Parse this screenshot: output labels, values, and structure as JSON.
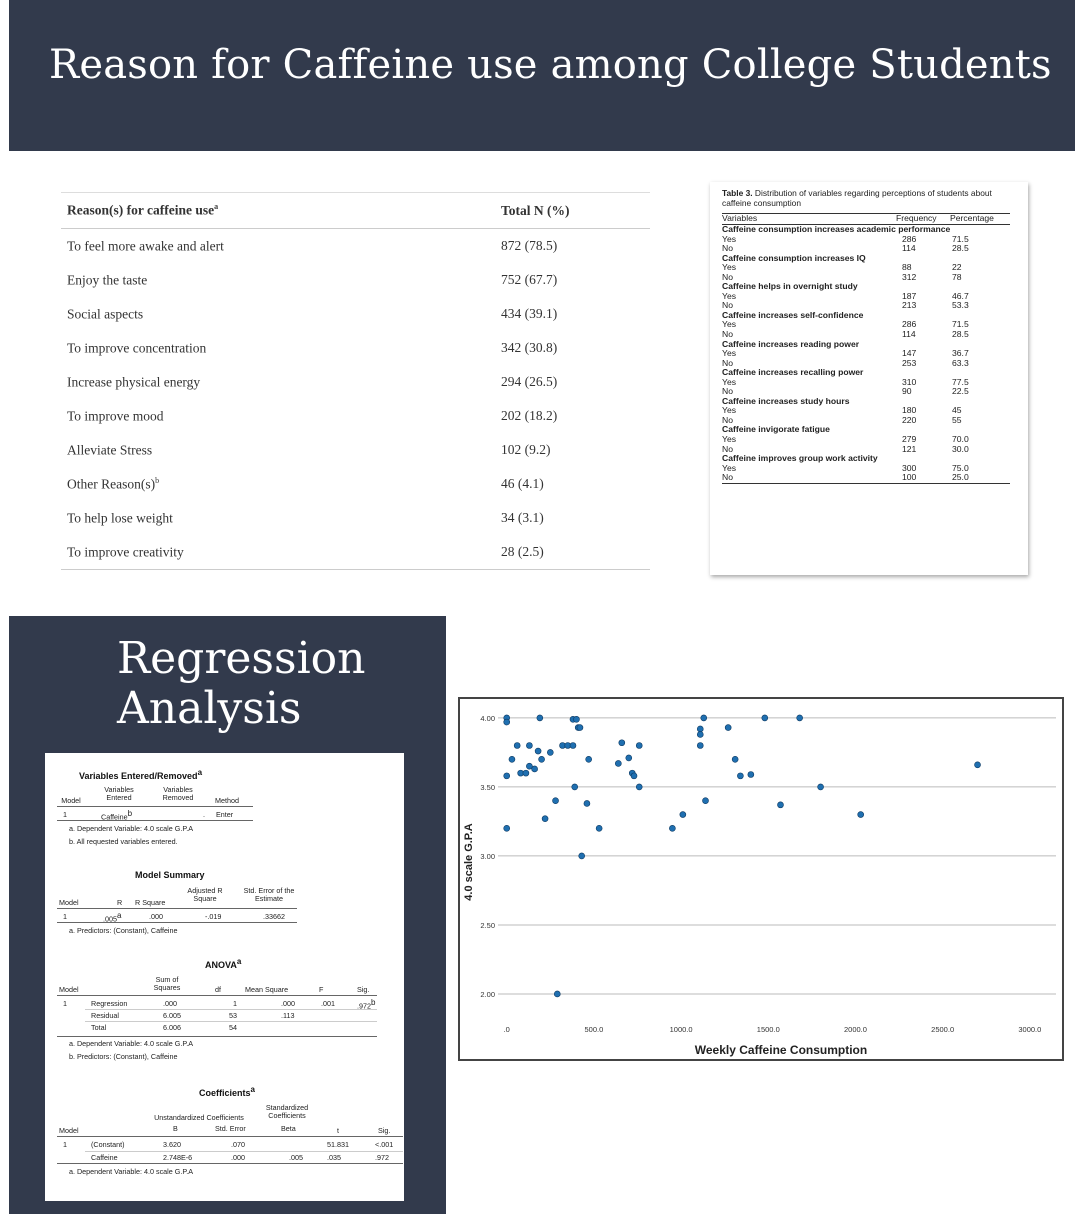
{
  "page": {
    "title": "Reason for Caffeine use among College Students",
    "regression_title_line1": "Regression",
    "regression_title_line2": "Analysis"
  },
  "reasons_table": {
    "col1": "Reason(s) for caffeine use",
    "col1_sup": "a",
    "col2": "Total N (%)",
    "rows": [
      {
        "reason": "To feel more awake and alert",
        "sup": "",
        "total": "872 (78.5)"
      },
      {
        "reason": "Enjoy the taste",
        "sup": "",
        "total": "752 (67.7)"
      },
      {
        "reason": "Social aspects",
        "sup": "",
        "total": "434 (39.1)"
      },
      {
        "reason": "To improve concentration",
        "sup": "",
        "total": "342 (30.8)"
      },
      {
        "reason": "Increase physical energy",
        "sup": "",
        "total": "294 (26.5)"
      },
      {
        "reason": "To improve mood",
        "sup": "",
        "total": "202 (18.2)"
      },
      {
        "reason": "Alleviate Stress",
        "sup": "",
        "total": "102 (9.2)"
      },
      {
        "reason": "Other Reason(s)",
        "sup": "b",
        "total": "46 (4.1)"
      },
      {
        "reason": "To help lose weight",
        "sup": "",
        "total": "34 (3.1)"
      },
      {
        "reason": "To improve creativity",
        "sup": "",
        "total": "28 (2.5)"
      }
    ]
  },
  "table3": {
    "caption_bold": "Table 3.",
    "caption": "Distribution of variables regarding perceptions of students about caffeine consumption",
    "headers": {
      "variables": "Variables",
      "frequency": "Frequency",
      "percentage": "Percentage"
    },
    "sections": [
      {
        "title": "Caffeine consumption increases academic performance",
        "rows": [
          {
            "label": "Yes",
            "freq": "286",
            "pct": "71.5"
          },
          {
            "label": "No",
            "freq": "114",
            "pct": "28.5"
          }
        ]
      },
      {
        "title": "Caffeine consumption increases IQ",
        "rows": [
          {
            "label": "Yes",
            "freq": "88",
            "pct": "22"
          },
          {
            "label": "No",
            "freq": "312",
            "pct": "78"
          }
        ]
      },
      {
        "title": "Caffeine helps in overnight study",
        "rows": [
          {
            "label": "Yes",
            "freq": "187",
            "pct": "46.7"
          },
          {
            "label": "No",
            "freq": "213",
            "pct": "53.3"
          }
        ]
      },
      {
        "title": "Caffeine increases self-confidence",
        "rows": [
          {
            "label": "Yes",
            "freq": "286",
            "pct": "71.5"
          },
          {
            "label": "No",
            "freq": "114",
            "pct": "28.5"
          }
        ]
      },
      {
        "title": "Caffeine increases reading power",
        "rows": [
          {
            "label": "Yes",
            "freq": "147",
            "pct": "36.7"
          },
          {
            "label": "No",
            "freq": "253",
            "pct": "63.3"
          }
        ]
      },
      {
        "title": "Caffeine increases recalling power",
        "rows": [
          {
            "label": "Yes",
            "freq": "310",
            "pct": "77.5"
          },
          {
            "label": "No",
            "freq": "90",
            "pct": "22.5"
          }
        ]
      },
      {
        "title": "Caffeine increases study hours",
        "rows": [
          {
            "label": "Yes",
            "freq": "180",
            "pct": "45"
          },
          {
            "label": "No",
            "freq": "220",
            "pct": "55"
          }
        ]
      },
      {
        "title": "Caffeine invigorate fatigue",
        "rows": [
          {
            "label": "Yes",
            "freq": "279",
            "pct": "70.0"
          },
          {
            "label": "No",
            "freq": "121",
            "pct": "30.0"
          }
        ]
      },
      {
        "title": "Caffeine improves group work activity",
        "rows": [
          {
            "label": "Yes",
            "freq": "300",
            "pct": "75.0"
          },
          {
            "label": "No",
            "freq": "100",
            "pct": "25.0"
          }
        ]
      }
    ]
  },
  "spss": {
    "ver": {
      "title": "Variables Entered/Removed",
      "sup": "a",
      "h_model": "Model",
      "h_entered": "Variables Entered",
      "h_removed": "Variables Removed",
      "h_method": "Method",
      "model": "1",
      "entered": "Caffeine",
      "entered_sup": "b",
      "removed": ".",
      "method": "Enter",
      "note_a": "a. Dependent Variable: 4.0 scale G.P.A",
      "note_b": "b. All requested variables entered."
    },
    "summary": {
      "title": "Model Summary",
      "h_model": "Model",
      "h_r": "R",
      "h_rsq": "R Square",
      "h_adj": "Adjusted R Square",
      "h_se": "Std. Error of the Estimate",
      "model": "1",
      "r": ".005",
      "r_sup": "a",
      "rsq": ".000",
      "adj": "-.019",
      "se": ".33662",
      "note_a": "a. Predictors: (Constant), Caffeine"
    },
    "anova": {
      "title": "ANOVA",
      "sup": "a",
      "h_model": "Model",
      "h_ss": "Sum of Squares",
      "h_df": "df",
      "h_ms": "Mean Square",
      "h_f": "F",
      "h_sig": "Sig.",
      "model": "1",
      "rows": [
        {
          "name": "Regression",
          "ss": ".000",
          "df": "1",
          "ms": ".000",
          "f": ".001",
          "sig": ".972",
          "sig_sup": "b"
        },
        {
          "name": "Residual",
          "ss": "6.005",
          "df": "53",
          "ms": ".113",
          "f": "",
          "sig": "",
          "sig_sup": ""
        },
        {
          "name": "Total",
          "ss": "6.006",
          "df": "54",
          "ms": "",
          "f": "",
          "sig": "",
          "sig_sup": ""
        }
      ],
      "note_a": "a. Dependent Variable: 4.0 scale G.P.A",
      "note_b": "b. Predictors: (Constant), Caffeine"
    },
    "coef": {
      "title": "Coefficients",
      "sup": "a",
      "h_model": "Model",
      "h_unstd": "Unstandardized Coefficients",
      "h_std": "Standardized Coefficients",
      "h_b": "B",
      "h_se": "Std. Error",
      "h_beta": "Beta",
      "h_t": "t",
      "h_sig": "Sig.",
      "model": "1",
      "rows": [
        {
          "name": "(Constant)",
          "b": "3.620",
          "se": ".070",
          "beta": "",
          "t": "51.831",
          "sig": "<.001"
        },
        {
          "name": "Caffeine",
          "b": "2.748E-6",
          "se": ".000",
          "beta": ".005",
          "t": ".035",
          "sig": ".972"
        }
      ],
      "note_a": "a. Dependent Variable: 4.0 scale G.P.A"
    }
  },
  "chart_data": {
    "type": "scatter",
    "title": "",
    "xlabel": "Weekly Caffeine Consumption",
    "ylabel": "4.0 scale G.P.A",
    "xlim": [
      -50,
      3150
    ],
    "ylim": [
      1.92,
      4.05
    ],
    "x_ticks": [
      ".0",
      "500.0",
      "1000.0",
      "1500.0",
      "2000.0",
      "2500.0",
      "3000.0"
    ],
    "y_ticks": [
      "2.00",
      "2.50",
      "3.00",
      "3.50",
      "4.00"
    ],
    "grid": "horizontal",
    "point_color": "#1f6fb0",
    "points": [
      {
        "x": 0,
        "y": 4.0
      },
      {
        "x": 0,
        "y": 3.97
      },
      {
        "x": 0,
        "y": 3.58
      },
      {
        "x": 0,
        "y": 3.2
      },
      {
        "x": 30,
        "y": 3.7
      },
      {
        "x": 60,
        "y": 3.8
      },
      {
        "x": 80,
        "y": 3.6
      },
      {
        "x": 110,
        "y": 3.6
      },
      {
        "x": 130,
        "y": 3.65
      },
      {
        "x": 130,
        "y": 3.8
      },
      {
        "x": 160,
        "y": 3.63
      },
      {
        "x": 180,
        "y": 3.76
      },
      {
        "x": 190,
        "y": 4.0
      },
      {
        "x": 200,
        "y": 3.7
      },
      {
        "x": 220,
        "y": 3.27
      },
      {
        "x": 250,
        "y": 3.75
      },
      {
        "x": 280,
        "y": 3.4
      },
      {
        "x": 290,
        "y": 2.0
      },
      {
        "x": 320,
        "y": 3.8
      },
      {
        "x": 350,
        "y": 3.8
      },
      {
        "x": 380,
        "y": 3.8
      },
      {
        "x": 380,
        "y": 3.99
      },
      {
        "x": 390,
        "y": 3.5
      },
      {
        "x": 400,
        "y": 3.99
      },
      {
        "x": 410,
        "y": 3.93
      },
      {
        "x": 420,
        "y": 3.93
      },
      {
        "x": 430,
        "y": 3.0
      },
      {
        "x": 460,
        "y": 3.38
      },
      {
        "x": 470,
        "y": 3.7
      },
      {
        "x": 530,
        "y": 3.2
      },
      {
        "x": 660,
        "y": 3.82
      },
      {
        "x": 640,
        "y": 3.67
      },
      {
        "x": 700,
        "y": 3.71
      },
      {
        "x": 720,
        "y": 3.6
      },
      {
        "x": 730,
        "y": 3.58
      },
      {
        "x": 760,
        "y": 3.8
      },
      {
        "x": 760,
        "y": 3.5
      },
      {
        "x": 950,
        "y": 3.2
      },
      {
        "x": 1010,
        "y": 3.3
      },
      {
        "x": 1110,
        "y": 3.92
      },
      {
        "x": 1110,
        "y": 3.88
      },
      {
        "x": 1110,
        "y": 3.8
      },
      {
        "x": 1130,
        "y": 4.0
      },
      {
        "x": 1140,
        "y": 3.4
      },
      {
        "x": 1270,
        "y": 3.93
      },
      {
        "x": 1310,
        "y": 3.7
      },
      {
        "x": 1340,
        "y": 3.58
      },
      {
        "x": 1400,
        "y": 3.59
      },
      {
        "x": 1480,
        "y": 4.0
      },
      {
        "x": 1570,
        "y": 3.37
      },
      {
        "x": 1680,
        "y": 4.0
      },
      {
        "x": 1800,
        "y": 3.5
      },
      {
        "x": 2030,
        "y": 3.3
      },
      {
        "x": 2700,
        "y": 3.66
      }
    ]
  }
}
